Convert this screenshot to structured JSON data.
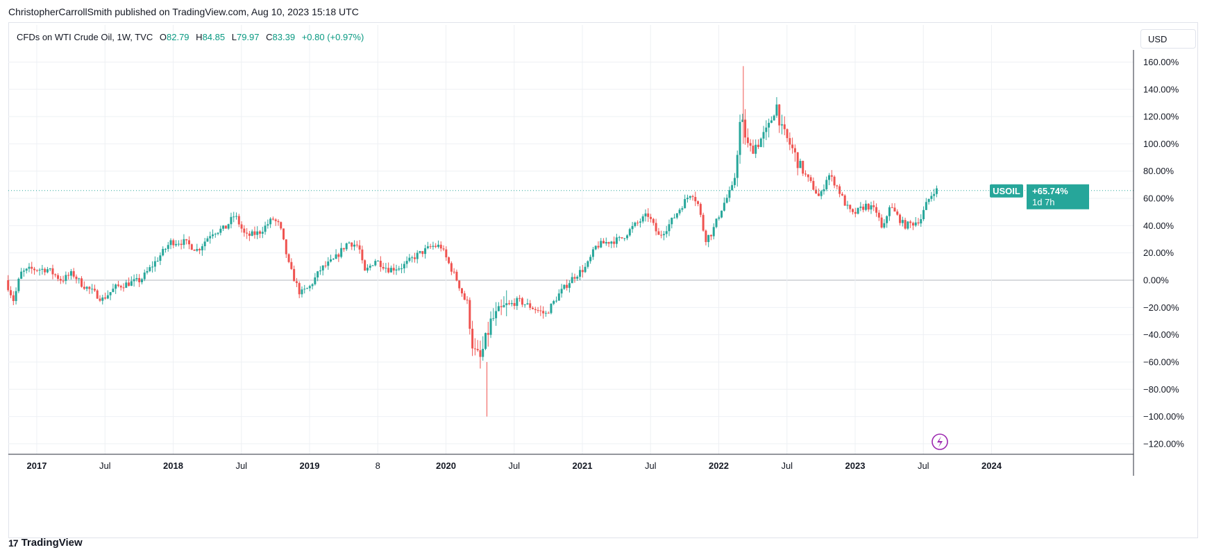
{
  "header": {
    "text": "ChristopherCarrollSmith published on TradingView.com, Aug 10, 2023 15:18 UTC"
  },
  "legend": {
    "symbol": "CFDs on WTI Crude Oil, 1W, TVC",
    "open_label": "O",
    "open": "82.79",
    "high_label": "H",
    "high": "84.85",
    "low_label": "L",
    "low": "79.97",
    "close_label": "C",
    "close": "83.39",
    "change": "+0.80 (+0.97%)"
  },
  "currency_button": "USD",
  "price_tag": {
    "symbol": "USOIL",
    "value": "+65.74%",
    "countdown": "1d 7h"
  },
  "footer": {
    "logo_text": "TradingView"
  },
  "colors": {
    "up": "#26a69a",
    "down": "#ef5350",
    "grid": "#eef0f4",
    "axis_text": "#131722",
    "zero_line": "#b2b5be",
    "alert_icon": "#9c27b0"
  },
  "chart_data": {
    "type": "candlestick",
    "ylabel": "",
    "yunit": "%",
    "ylim": [
      -120,
      160
    ],
    "y_ticks": [
      "160.00%",
      "140.00%",
      "120.00%",
      "100.00%",
      "80.00%",
      "60.00%",
      "40.00%",
      "20.00%",
      "0.00%",
      "−20.00%",
      "−40.00%",
      "−60.00%",
      "−80.00%",
      "−100.00%",
      "−120.00%"
    ],
    "y_tick_values": [
      160,
      140,
      120,
      100,
      80,
      60,
      40,
      20,
      0,
      -20,
      -40,
      -60,
      -80,
      -100,
      -120
    ],
    "x_ticks": [
      "2017",
      "Jul",
      "2018",
      "Jul",
      "2019",
      "8",
      "2020",
      "Jul",
      "2021",
      "Jul",
      "2022",
      "Jul",
      "2023",
      "Jul",
      "2024"
    ],
    "x_tick_values": [
      2017.0,
      2017.5,
      2018.0,
      2018.5,
      2019.0,
      2019.5,
      2020.0,
      2020.5,
      2021.0,
      2021.5,
      2022.0,
      2022.5,
      2023.0,
      2023.5,
      2024.0
    ],
    "x_tick_bold": [
      true,
      false,
      true,
      false,
      true,
      false,
      true,
      false,
      true,
      false,
      true,
      false,
      true,
      false,
      true
    ],
    "xlim": [
      2016.79,
      2024.2
    ],
    "last_value": 65.74,
    "series_path": [
      [
        2016.79,
        0
      ],
      [
        2016.85,
        -15
      ],
      [
        2016.9,
        5
      ],
      [
        2016.97,
        8
      ],
      [
        2017.1,
        8
      ],
      [
        2017.2,
        0
      ],
      [
        2017.28,
        5
      ],
      [
        2017.35,
        -3
      ],
      [
        2017.45,
        -10
      ],
      [
        2017.5,
        -14
      ],
      [
        2017.6,
        -5
      ],
      [
        2017.7,
        -2
      ],
      [
        2017.78,
        0
      ],
      [
        2017.9,
        15
      ],
      [
        2018.0,
        28
      ],
      [
        2018.1,
        28
      ],
      [
        2018.2,
        22
      ],
      [
        2018.3,
        35
      ],
      [
        2018.4,
        38
      ],
      [
        2018.47,
        48
      ],
      [
        2018.55,
        32
      ],
      [
        2018.65,
        35
      ],
      [
        2018.75,
        45
      ],
      [
        2018.8,
        40
      ],
      [
        2018.87,
        10
      ],
      [
        2018.95,
        -10
      ],
      [
        2019.02,
        -5
      ],
      [
        2019.1,
        8
      ],
      [
        2019.2,
        15
      ],
      [
        2019.3,
        28
      ],
      [
        2019.38,
        25
      ],
      [
        2019.42,
        5
      ],
      [
        2019.5,
        15
      ],
      [
        2019.6,
        8
      ],
      [
        2019.7,
        10
      ],
      [
        2019.8,
        18
      ],
      [
        2019.92,
        25
      ],
      [
        2019.98,
        25
      ],
      [
        2020.05,
        10
      ],
      [
        2020.1,
        0
      ],
      [
        2020.18,
        -20
      ],
      [
        2020.22,
        -52
      ],
      [
        2020.27,
        -58
      ],
      [
        2020.3,
        -48
      ],
      [
        2020.35,
        -30
      ],
      [
        2020.45,
        -20
      ],
      [
        2020.55,
        -15
      ],
      [
        2020.65,
        -20
      ],
      [
        2020.75,
        -25
      ],
      [
        2020.85,
        -10
      ],
      [
        2020.95,
        2
      ],
      [
        2021.05,
        10
      ],
      [
        2021.12,
        25
      ],
      [
        2021.2,
        28
      ],
      [
        2021.3,
        30
      ],
      [
        2021.4,
        40
      ],
      [
        2021.5,
        48
      ],
      [
        2021.58,
        32
      ],
      [
        2021.65,
        40
      ],
      [
        2021.75,
        55
      ],
      [
        2021.82,
        65
      ],
      [
        2021.87,
        55
      ],
      [
        2021.92,
        30
      ],
      [
        2021.97,
        35
      ],
      [
        2022.05,
        55
      ],
      [
        2022.13,
        70
      ],
      [
        2022.18,
        120
      ],
      [
        2022.24,
        95
      ],
      [
        2022.3,
        100
      ],
      [
        2022.38,
        110
      ],
      [
        2022.44,
        130
      ],
      [
        2022.48,
        110
      ],
      [
        2022.55,
        98
      ],
      [
        2022.62,
        82
      ],
      [
        2022.7,
        70
      ],
      [
        2022.76,
        60
      ],
      [
        2022.82,
        78
      ],
      [
        2022.88,
        70
      ],
      [
        2022.95,
        55
      ],
      [
        2023.0,
        48
      ],
      [
        2023.1,
        55
      ],
      [
        2023.18,
        50
      ],
      [
        2023.22,
        35
      ],
      [
        2023.27,
        55
      ],
      [
        2023.32,
        48
      ],
      [
        2023.38,
        40
      ],
      [
        2023.45,
        42
      ],
      [
        2023.5,
        45
      ],
      [
        2023.55,
        58
      ],
      [
        2023.6,
        66
      ]
    ]
  }
}
